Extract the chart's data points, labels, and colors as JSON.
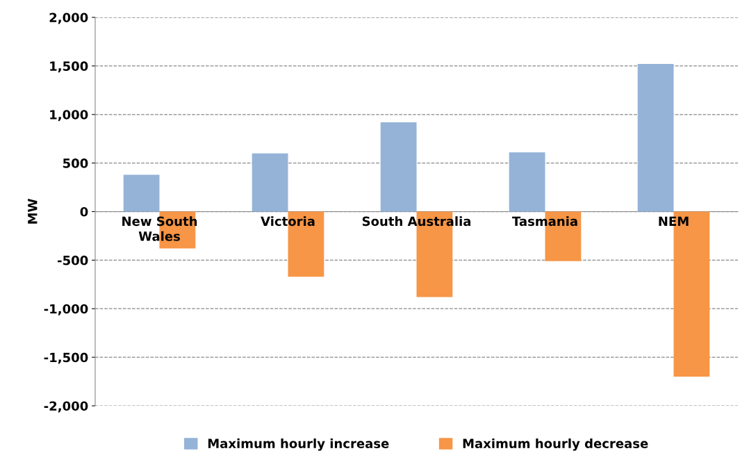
{
  "chart_data": {
    "type": "bar",
    "ylabel": "MW",
    "categories": [
      "New South\nWales",
      "Victoria",
      "South Australia",
      "Tasmania",
      "NEM"
    ],
    "series": [
      {
        "name": "Maximum hourly increase",
        "color": "#95b3d7",
        "values": [
          380,
          600,
          920,
          610,
          1520
        ]
      },
      {
        "name": "Maximum hourly decrease",
        "color": "#f79646",
        "values": [
          -380,
          -670,
          -880,
          -510,
          -1700
        ]
      }
    ],
    "ylim": [
      -2000,
      2000
    ],
    "yticks": [
      {
        "value": -2000,
        "label": "-2,000"
      },
      {
        "value": -1500,
        "label": "-1,500"
      },
      {
        "value": -1000,
        "label": "-1,000"
      },
      {
        "value": -500,
        "label": "-500"
      },
      0,
      {
        "value": 500,
        "label": "500"
      },
      {
        "value": 1000,
        "label": "1,000"
      },
      {
        "value": 1500,
        "label": "1,500"
      },
      {
        "value": 2000,
        "label": "2,000"
      }
    ],
    "grid": "y",
    "legend": "bottom"
  }
}
